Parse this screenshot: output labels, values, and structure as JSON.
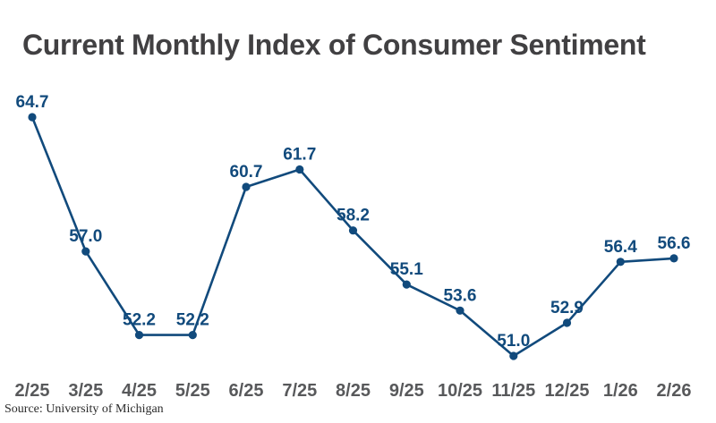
{
  "title": "Current Monthly Index of Consumer Sentiment",
  "source": "Source: University of Michigan",
  "colors": {
    "line": "#114A7C",
    "marker": "#114A7C",
    "value_labels": "#114A7C",
    "title": "#414042",
    "axis_labels": "#58595B",
    "background": "#FFFFFF"
  },
  "chart_data": {
    "type": "line",
    "title": "Current Monthly Index of Consumer Sentiment",
    "xlabel": "",
    "ylabel": "",
    "grid": false,
    "legend": "none",
    "marker": "circle",
    "categories": [
      "2/25",
      "3/25",
      "4/25",
      "5/25",
      "6/25",
      "7/25",
      "8/25",
      "9/25",
      "10/25",
      "11/25",
      "12/25",
      "1/26",
      "2/26"
    ],
    "values": [
      64.7,
      57.0,
      52.2,
      52.2,
      60.7,
      61.7,
      58.2,
      55.1,
      53.6,
      51.0,
      52.9,
      56.4,
      56.6
    ],
    "data_labels": [
      "64.7",
      "57.0",
      "52.2",
      "52.2",
      "60.7",
      "61.7",
      "58.2",
      "55.1",
      "53.6",
      "51.0",
      "52.9",
      "56.4",
      "56.6"
    ],
    "y_range_shown": [
      51.0,
      64.7
    ]
  }
}
